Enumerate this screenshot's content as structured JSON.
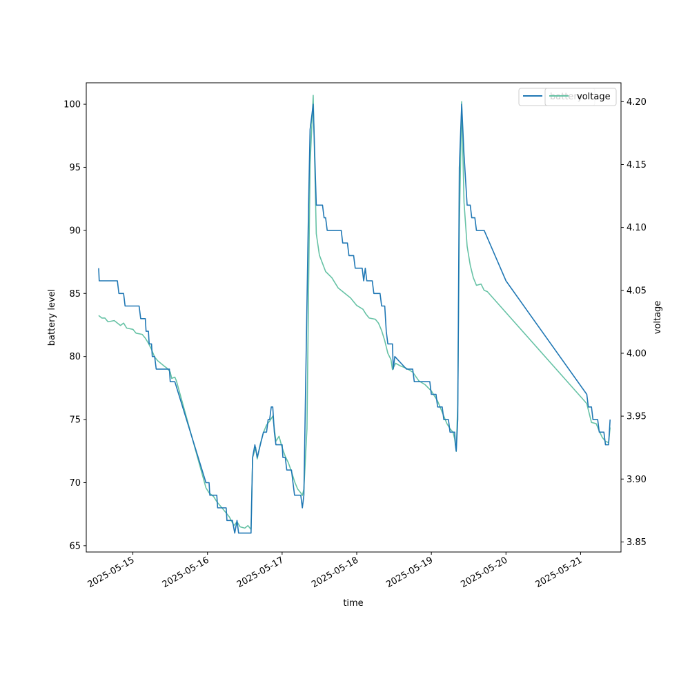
{
  "chart_data": {
    "type": "line",
    "xlabel": "time",
    "ylabel": "battery level",
    "y2label": "voltage",
    "xlim": [
      "2025-05-14 09:00",
      "2025-05-21 13:00"
    ],
    "ylim": [
      64.5,
      101.7
    ],
    "y2lim": [
      3.842,
      4.215
    ],
    "x_ticks": [
      "2025-05-15",
      "2025-05-16",
      "2025-05-17",
      "2025-05-18",
      "2025-05-19",
      "2025-05-20",
      "2025-05-21"
    ],
    "y_ticks": [
      65,
      70,
      75,
      80,
      85,
      90,
      95,
      100
    ],
    "y2_ticks": [
      "3.85",
      "3.90",
      "3.95",
      "4.00",
      "4.05",
      "4.10",
      "4.15",
      "4.20"
    ],
    "grid": false,
    "legend_placement": "upper right",
    "series": [
      {
        "name": "battery",
        "axis": "left",
        "color": "#1f77b4",
        "points": [
          [
            "2025-05-14 13:00",
            87
          ],
          [
            "2025-05-14 13:10",
            86
          ],
          [
            "2025-05-14 15:00",
            86
          ],
          [
            "2025-05-14 19:00",
            86
          ],
          [
            "2025-05-14 19:30",
            85
          ],
          [
            "2025-05-14 21:00",
            85
          ],
          [
            "2025-05-14 21:30",
            84
          ],
          [
            "2025-05-15 02:00",
            84
          ],
          [
            "2025-05-15 02:30",
            83
          ],
          [
            "2025-05-15 04:00",
            83
          ],
          [
            "2025-05-15 04:15",
            82
          ],
          [
            "2025-05-15 05:00",
            82
          ],
          [
            "2025-05-15 05:15",
            81
          ],
          [
            "2025-05-15 06:00",
            81
          ],
          [
            "2025-05-15 06:15",
            80
          ],
          [
            "2025-05-15 07:00",
            80
          ],
          [
            "2025-05-15 07:30",
            79
          ],
          [
            "2025-05-15 11:45",
            79
          ],
          [
            "2025-05-15 12:00",
            78
          ],
          [
            "2025-05-15 13:30",
            78
          ],
          [
            "2025-05-15 23:30",
            70
          ],
          [
            "2025-05-16 00:30",
            70
          ],
          [
            "2025-05-16 00:45",
            69
          ],
          [
            "2025-05-16 03:00",
            69
          ],
          [
            "2025-05-16 03:15",
            68
          ],
          [
            "2025-05-16 06:00",
            68
          ],
          [
            "2025-05-16 06:15",
            67
          ],
          [
            "2025-05-16 08:00",
            67
          ],
          [
            "2025-05-16 08:45",
            66
          ],
          [
            "2025-05-16 09:30",
            67
          ],
          [
            "2025-05-16 10:00",
            66
          ],
          [
            "2025-05-16 14:00",
            66
          ],
          [
            "2025-05-16 14:30",
            72
          ],
          [
            "2025-05-16 15:15",
            73
          ],
          [
            "2025-05-16 16:00",
            72
          ],
          [
            "2025-05-16 17:00",
            73
          ],
          [
            "2025-05-16 18:00",
            74
          ],
          [
            "2025-05-16 19:00",
            74
          ],
          [
            "2025-05-16 19:30",
            75
          ],
          [
            "2025-05-16 20:00",
            75
          ],
          [
            "2025-05-16 20:30",
            76
          ],
          [
            "2025-05-16 21:00",
            76
          ],
          [
            "2025-05-16 21:30",
            74
          ],
          [
            "2025-05-16 22:00",
            73
          ],
          [
            "2025-05-17 00:00",
            73
          ],
          [
            "2025-05-17 00:15",
            72
          ],
          [
            "2025-05-17 01:00",
            72
          ],
          [
            "2025-05-17 01:30",
            71
          ],
          [
            "2025-05-17 03:00",
            71
          ],
          [
            "2025-05-17 03:30",
            70
          ],
          [
            "2025-05-17 04:00",
            69
          ],
          [
            "2025-05-17 06:00",
            69
          ],
          [
            "2025-05-17 06:30",
            68
          ],
          [
            "2025-05-17 07:00",
            69
          ],
          [
            "2025-05-17 08:30",
            92
          ],
          [
            "2025-05-17 09:00",
            98
          ],
          [
            "2025-05-17 10:00",
            100
          ],
          [
            "2025-05-17 11:00",
            92
          ],
          [
            "2025-05-17 13:00",
            92
          ],
          [
            "2025-05-17 13:30",
            91
          ],
          [
            "2025-05-17 14:00",
            91
          ],
          [
            "2025-05-17 14:30",
            90
          ],
          [
            "2025-05-17 19:00",
            90
          ],
          [
            "2025-05-17 19:30",
            89
          ],
          [
            "2025-05-17 21:00",
            89
          ],
          [
            "2025-05-17 21:30",
            88
          ],
          [
            "2025-05-17 23:00",
            88
          ],
          [
            "2025-05-17 23:30",
            87
          ],
          [
            "2025-05-18 01:45",
            87
          ],
          [
            "2025-05-18 02:15",
            86
          ],
          [
            "2025-05-18 02:45",
            87
          ],
          [
            "2025-05-18 03:15",
            86
          ],
          [
            "2025-05-18 05:00",
            86
          ],
          [
            "2025-05-18 05:30",
            85
          ],
          [
            "2025-05-18 07:30",
            85
          ],
          [
            "2025-05-18 08:00",
            84
          ],
          [
            "2025-05-18 09:00",
            84
          ],
          [
            "2025-05-18 09:30",
            82
          ],
          [
            "2025-05-18 10:00",
            81
          ],
          [
            "2025-05-18 11:30",
            81
          ],
          [
            "2025-05-18 11:45",
            79
          ],
          [
            "2025-05-18 12:15",
            80
          ],
          [
            "2025-05-18 16:00",
            79
          ],
          [
            "2025-05-18 18:00",
            79
          ],
          [
            "2025-05-18 18:30",
            78
          ],
          [
            "2025-05-18 23:30",
            78
          ],
          [
            "2025-05-19 00:00",
            77
          ],
          [
            "2025-05-19 01:30",
            77
          ],
          [
            "2025-05-19 02:00",
            76
          ],
          [
            "2025-05-19 03:30",
            76
          ],
          [
            "2025-05-19 04:00",
            75
          ],
          [
            "2025-05-19 05:30",
            75
          ],
          [
            "2025-05-19 06:00",
            74
          ],
          [
            "2025-05-19 07:30",
            74
          ],
          [
            "2025-05-19 07:45",
            73
          ],
          [
            "2025-05-19 08:00",
            72.5
          ],
          [
            "2025-05-19 08:30",
            75
          ],
          [
            "2025-05-19 09:00",
            95
          ],
          [
            "2025-05-19 09:45",
            100
          ],
          [
            "2025-05-19 10:30",
            96
          ],
          [
            "2025-05-19 11:30",
            92
          ],
          [
            "2025-05-19 12:30",
            92
          ],
          [
            "2025-05-19 13:00",
            91
          ],
          [
            "2025-05-19 14:00",
            91
          ],
          [
            "2025-05-19 14:30",
            90
          ],
          [
            "2025-05-19 17:00",
            90
          ],
          [
            "2025-05-20 00:00",
            86
          ],
          [
            "2025-05-21 02:00",
            77
          ],
          [
            "2025-05-21 02:30",
            76
          ],
          [
            "2025-05-21 03:30",
            76
          ],
          [
            "2025-05-21 04:00",
            75
          ],
          [
            "2025-05-21 05:30",
            75
          ],
          [
            "2025-05-21 06:00",
            74
          ],
          [
            "2025-05-21 07:30",
            74
          ],
          [
            "2025-05-21 08:00",
            73
          ],
          [
            "2025-05-21 09:00",
            73
          ],
          [
            "2025-05-21 09:30",
            75
          ]
        ]
      },
      {
        "name": "voltage",
        "axis": "right",
        "color": "#66c2a5",
        "points": [
          [
            "2025-05-14 13:00",
            4.03
          ],
          [
            "2025-05-14 14:00",
            4.028
          ],
          [
            "2025-05-14 15:00",
            4.028
          ],
          [
            "2025-05-14 16:00",
            4.025
          ],
          [
            "2025-05-14 18:00",
            4.026
          ],
          [
            "2025-05-14 20:00",
            4.022
          ],
          [
            "2025-05-14 21:00",
            4.024
          ],
          [
            "2025-05-14 22:00",
            4.02
          ],
          [
            "2025-05-15 00:00",
            4.019
          ],
          [
            "2025-05-15 01:00",
            4.016
          ],
          [
            "2025-05-15 03:00",
            4.015
          ],
          [
            "2025-05-15 04:00",
            4.012
          ],
          [
            "2025-05-15 05:00",
            4.008
          ],
          [
            "2025-05-15 06:00",
            4.003
          ],
          [
            "2025-05-15 07:00",
            3.997
          ],
          [
            "2025-05-15 08:00",
            3.994
          ],
          [
            "2025-05-15 10:00",
            3.99
          ],
          [
            "2025-05-15 11:00",
            3.988
          ],
          [
            "2025-05-15 12:00",
            3.985
          ],
          [
            "2025-05-15 12:30",
            3.98
          ],
          [
            "2025-05-15 13:30",
            3.981
          ],
          [
            "2025-05-15 14:00",
            3.978
          ],
          [
            "2025-05-15 23:30",
            3.893
          ],
          [
            "2025-05-16 00:30",
            3.889
          ],
          [
            "2025-05-16 02:00",
            3.886
          ],
          [
            "2025-05-16 03:00",
            3.882
          ],
          [
            "2025-05-16 05:00",
            3.876
          ],
          [
            "2025-05-16 07:00",
            3.87
          ],
          [
            "2025-05-16 08:30",
            3.863
          ],
          [
            "2025-05-16 09:30",
            3.866
          ],
          [
            "2025-05-16 10:30",
            3.862
          ],
          [
            "2025-05-16 12:00",
            3.861
          ],
          [
            "2025-05-16 13:00",
            3.863
          ],
          [
            "2025-05-16 14:00",
            3.86
          ],
          [
            "2025-05-16 14:30",
            3.917
          ],
          [
            "2025-05-16 15:00",
            3.921
          ],
          [
            "2025-05-16 15:30",
            3.925
          ],
          [
            "2025-05-16 16:00",
            3.916
          ],
          [
            "2025-05-16 17:00",
            3.928
          ],
          [
            "2025-05-16 18:00",
            3.937
          ],
          [
            "2025-05-16 19:00",
            3.943
          ],
          [
            "2025-05-16 20:00",
            3.946
          ],
          [
            "2025-05-16 21:00",
            3.95
          ],
          [
            "2025-05-16 22:00",
            3.93
          ],
          [
            "2025-05-16 23:00",
            3.934
          ],
          [
            "2025-05-17 00:00",
            3.925
          ],
          [
            "2025-05-17 01:00",
            3.918
          ],
          [
            "2025-05-17 02:00",
            3.913
          ],
          [
            "2025-05-17 03:00",
            3.906
          ],
          [
            "2025-05-17 04:00",
            3.898
          ],
          [
            "2025-05-17 05:00",
            3.892
          ],
          [
            "2025-05-17 06:00",
            3.889
          ],
          [
            "2025-05-17 06:30",
            3.887
          ],
          [
            "2025-05-17 07:00",
            3.892
          ],
          [
            "2025-05-17 08:00",
            3.94
          ],
          [
            "2025-05-17 08:30",
            4.05
          ],
          [
            "2025-05-17 09:00",
            4.15
          ],
          [
            "2025-05-17 10:00",
            4.205
          ],
          [
            "2025-05-17 11:00",
            4.095
          ],
          [
            "2025-05-17 12:00",
            4.078
          ],
          [
            "2025-05-17 14:00",
            4.065
          ],
          [
            "2025-05-17 16:00",
            4.06
          ],
          [
            "2025-05-17 18:00",
            4.052
          ],
          [
            "2025-05-17 20:00",
            4.048
          ],
          [
            "2025-05-17 22:00",
            4.044
          ],
          [
            "2025-05-18 00:00",
            4.038
          ],
          [
            "2025-05-18 02:00",
            4.035
          ],
          [
            "2025-05-18 03:00",
            4.031
          ],
          [
            "2025-05-18 04:00",
            4.028
          ],
          [
            "2025-05-18 06:00",
            4.027
          ],
          [
            "2025-05-18 07:00",
            4.024
          ],
          [
            "2025-05-18 08:00",
            4.018
          ],
          [
            "2025-05-18 09:00",
            4.01
          ],
          [
            "2025-05-18 10:00",
            4.0
          ],
          [
            "2025-05-18 11:00",
            3.995
          ],
          [
            "2025-05-18 11:30",
            3.987
          ],
          [
            "2025-05-18 12:30",
            3.992
          ],
          [
            "2025-05-18 14:00",
            3.99
          ],
          [
            "2025-05-18 16:00",
            3.988
          ],
          [
            "2025-05-18 18:00",
            3.985
          ],
          [
            "2025-05-18 20:00",
            3.978
          ],
          [
            "2025-05-18 22:00",
            3.975
          ],
          [
            "2025-05-19 00:00",
            3.97
          ],
          [
            "2025-05-19 02:00",
            3.962
          ],
          [
            "2025-05-19 04:00",
            3.95
          ],
          [
            "2025-05-19 05:00",
            3.944
          ],
          [
            "2025-05-19 06:00",
            3.94
          ],
          [
            "2025-05-19 07:00",
            3.937
          ],
          [
            "2025-05-19 07:30",
            3.932
          ],
          [
            "2025-05-19 08:00",
            3.922
          ],
          [
            "2025-05-19 08:30",
            3.96
          ],
          [
            "2025-05-19 09:00",
            4.1
          ],
          [
            "2025-05-19 09:45",
            4.2
          ],
          [
            "2025-05-19 10:30",
            4.12
          ],
          [
            "2025-05-19 11:30",
            4.085
          ],
          [
            "2025-05-19 12:30",
            4.07
          ],
          [
            "2025-05-19 13:30",
            4.06
          ],
          [
            "2025-05-19 14:30",
            4.054
          ],
          [
            "2025-05-19 16:00",
            4.055
          ],
          [
            "2025-05-19 17:00",
            4.05
          ],
          [
            "2025-05-19 18:00",
            4.049
          ],
          [
            "2025-05-21 02:00",
            3.96
          ],
          [
            "2025-05-21 03:30",
            3.945
          ],
          [
            "2025-05-21 05:00",
            3.944
          ],
          [
            "2025-05-21 06:00",
            3.938
          ],
          [
            "2025-05-21 07:00",
            3.933
          ],
          [
            "2025-05-21 08:00",
            3.93
          ],
          [
            "2025-05-21 09:00",
            3.929
          ],
          [
            "2025-05-21 09:30",
            3.941
          ]
        ]
      }
    ]
  }
}
